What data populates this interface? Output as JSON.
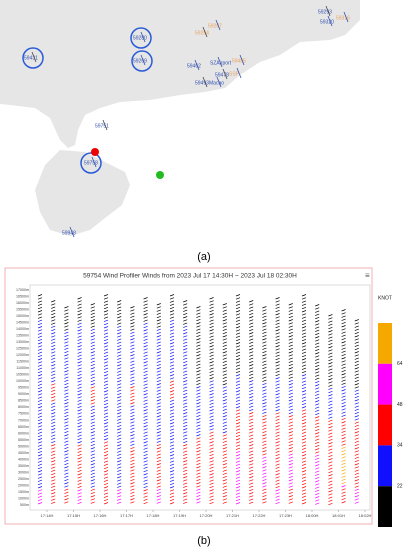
{
  "map": {
    "stations": [
      "59293",
      "59287",
      "59280",
      "59264",
      "59320",
      "59316",
      "59431",
      "59269",
      "59462",
      "59478",
      "SZAirport",
      "59485",
      "59493",
      "Macao",
      "SSP",
      "59751",
      "59758",
      "59948"
    ]
  },
  "panel_a_label": "(a)",
  "panel_b_label": "(b)",
  "profiler": {
    "title": "59754 Wind Profiler Winds from 2023 Jul 17 14:30H ~ 2023 Jul 18 02:30H",
    "yticks": [
      "17000m",
      "16500m",
      "16000m",
      "15500m",
      "15000m",
      "14500m",
      "14000m",
      "13500m",
      "13000m",
      "12500m",
      "12000m",
      "11500m",
      "11000m",
      "10500m",
      "10000m",
      "9500m",
      "9000m",
      "8500m",
      "8000m",
      "7500m",
      "7000m",
      "6500m",
      "6000m",
      "5500m",
      "5000m",
      "4500m",
      "4000m",
      "3500m",
      "3000m",
      "2500m",
      "2000m",
      "1500m",
      "1000m",
      "500m"
    ],
    "xticks": [
      "17:14H",
      "17:15H",
      "17:16H",
      "17:17H",
      "17:18H",
      "17:19H",
      "17:20H",
      "17:21H",
      "17:22H",
      "17:23H",
      "18:00H",
      "18:01H",
      "18:02H"
    ],
    "colorbar": {
      "title": "KNOT",
      "ticks": [
        64,
        48,
        34,
        22
      ],
      "colors": [
        "#f5a800",
        "#ff00ff",
        "#ff0000",
        "#1010ff",
        "#000000"
      ]
    }
  }
}
